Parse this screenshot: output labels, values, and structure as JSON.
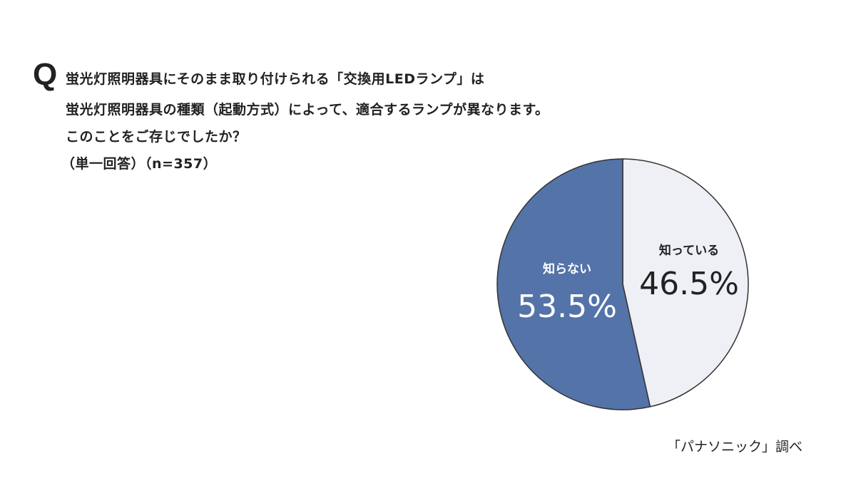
{
  "question": {
    "marker": "Q",
    "lines": [
      "蛍光灯照明器具にそのまま取り付けられる「交換用LEDランプ」は",
      "蛍光灯照明器具の種類（起動方式）によって、適合するランプが異なります。",
      "このことをご存じでしたか？",
      "（単一回答）（n=357）"
    ]
  },
  "source": "「パナソニック」調べ",
  "chart_data": {
    "type": "pie",
    "start": "top",
    "direction": "clockwise",
    "slices": [
      {
        "label": "知っている",
        "value": 46.5,
        "display": "46.5%",
        "color": "#eef0f5",
        "text_color": "#222222"
      },
      {
        "label": "知らない",
        "value": 53.5,
        "display": "53.5%",
        "color": "#5473a8",
        "text_color": "#ffffff"
      }
    ],
    "outline_color": "#333333"
  }
}
